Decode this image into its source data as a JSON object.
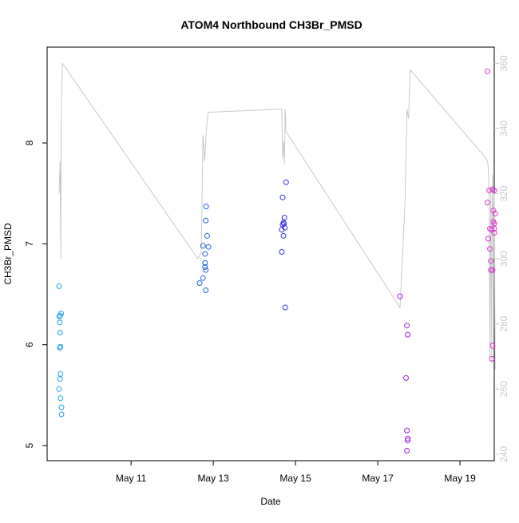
{
  "chart_data": {
    "type": "scatter",
    "title": "ATOM4 Northbound CH3Br_PMSD",
    "xlabel": "Date",
    "ylabel": "CH3Br_PMSD",
    "xlim": [
      "2016-05-08T23:00",
      "2016-05-19T20:00"
    ],
    "ylim": [
      4.85,
      8.95
    ],
    "xticks": [
      {
        "value": "2016-05-11",
        "label": "May 11"
      },
      {
        "value": "2016-05-13",
        "label": "May 13"
      },
      {
        "value": "2016-05-15",
        "label": "May 15"
      },
      {
        "value": "2016-05-17",
        "label": "May 17"
      },
      {
        "value": "2016-05-19",
        "label": "May 19"
      }
    ],
    "yticks": [
      5,
      6,
      7,
      8
    ],
    "y2lim": [
      238,
      365
    ],
    "y2ticks": [
      240,
      260,
      280,
      300,
      320,
      340,
      360
    ],
    "grid": false,
    "colors": {
      "axis": "#000000",
      "secondary_axis": "#c8c8c8",
      "line": "#c8c8c8"
    },
    "series": [
      {
        "color": "#1ea0e8",
        "points": [
          [
            "2016-05-09T06:00",
            6.58
          ],
          [
            "2016-05-09T06:12",
            6.28
          ],
          [
            "2016-05-09T06:36",
            6.29
          ],
          [
            "2016-05-09T06:24",
            6.22
          ],
          [
            "2016-05-09T07:12",
            6.31
          ],
          [
            "2016-05-09T06:36",
            6.12
          ],
          [
            "2016-05-09T06:24",
            5.97
          ],
          [
            "2016-05-09T06:48",
            5.98
          ],
          [
            "2016-05-09T06:48",
            5.71
          ],
          [
            "2016-05-09T06:36",
            5.66
          ],
          [
            "2016-05-09T06:00",
            5.56
          ],
          [
            "2016-05-09T06:48",
            5.47
          ],
          [
            "2016-05-09T07:24",
            5.38
          ],
          [
            "2016-05-09T07:24",
            5.31
          ]
        ]
      },
      {
        "color": "#2060e8",
        "points": [
          [
            "2016-05-12T16:00",
            6.61
          ],
          [
            "2016-05-12T18:00",
            6.66
          ],
          [
            "2016-05-12T18:00",
            6.98
          ],
          [
            "2016-05-12T19:12",
            6.9
          ],
          [
            "2016-05-12T19:12",
            6.81
          ],
          [
            "2016-05-12T19:12",
            6.77
          ],
          [
            "2016-05-12T19:36",
            6.74
          ],
          [
            "2016-05-12T19:36",
            6.54
          ],
          [
            "2016-05-12T19:36",
            7.23
          ],
          [
            "2016-05-12T19:48",
            7.37
          ],
          [
            "2016-05-12T20:24",
            7.08
          ],
          [
            "2016-05-12T21:12",
            6.97
          ]
        ]
      },
      {
        "color": "#3030e8",
        "points": [
          [
            "2016-05-14T16:30",
            7.46
          ],
          [
            "2016-05-14T16:00",
            7.14
          ],
          [
            "2016-05-14T16:30",
            7.19
          ],
          [
            "2016-05-14T17:00",
            7.21
          ],
          [
            "2016-05-14T17:15",
            7.2
          ],
          [
            "2016-05-14T17:30",
            7.26
          ],
          [
            "2016-05-14T17:45",
            7.16
          ],
          [
            "2016-05-14T17:00",
            7.08
          ],
          [
            "2016-05-14T16:00",
            6.92
          ],
          [
            "2016-05-14T18:30",
            7.61
          ],
          [
            "2016-05-14T18:00",
            6.37
          ]
        ]
      },
      {
        "color": "#a020e0",
        "points": [
          [
            "2016-05-17T13:00",
            6.48
          ],
          [
            "2016-05-17T17:00",
            6.19
          ],
          [
            "2016-05-17T17:30",
            6.1
          ],
          [
            "2016-05-17T16:30",
            5.67
          ],
          [
            "2016-05-17T17:00",
            5.15
          ],
          [
            "2016-05-17T17:30",
            5.07
          ],
          [
            "2016-05-17T17:30",
            5.05
          ],
          [
            "2016-05-17T17:00",
            4.95
          ]
        ]
      },
      {
        "color": "#e030d0",
        "points": [
          [
            "2016-05-19T16:00",
            8.71
          ],
          [
            "2016-05-19T16:00",
            7.41
          ],
          [
            "2016-05-19T17:00",
            7.53
          ],
          [
            "2016-05-19T19:00",
            7.54
          ],
          [
            "2016-05-19T20:00",
            7.53
          ],
          [
            "2016-05-19T19:30",
            7.33
          ],
          [
            "2016-05-19T20:30",
            7.3
          ],
          [
            "2016-05-19T19:30",
            7.22
          ],
          [
            "2016-05-19T20:00",
            7.2
          ],
          [
            "2016-05-19T17:30",
            7.15
          ],
          [
            "2016-05-19T18:30",
            7.14
          ],
          [
            "2016-05-19T20:00",
            7.15
          ],
          [
            "2016-05-19T20:00",
            7.11
          ],
          [
            "2016-05-19T16:30",
            7.05
          ],
          [
            "2016-05-19T17:30",
            6.95
          ],
          [
            "2016-05-19T18:00",
            6.83
          ],
          [
            "2016-05-19T18:00",
            6.74
          ],
          [
            "2016-05-19T19:00",
            6.74
          ],
          [
            "2016-05-19T19:00",
            5.99
          ],
          [
            "2016-05-19T18:30",
            5.86
          ]
        ]
      }
    ],
    "line_secondary": {
      "color": "#c8c8c8",
      "points": [
        [
          "2016-05-09T06:00",
          320
        ],
        [
          "2016-05-09T06:36",
          330
        ],
        [
          "2016-05-09T07:00",
          300
        ],
        [
          "2016-05-09T07:12",
          340
        ],
        [
          "2016-05-09T07:36",
          355
        ],
        [
          "2016-05-09T08:00",
          360
        ],
        [
          "2016-05-12T15:00",
          300
        ],
        [
          "2016-05-12T17:00",
          302
        ],
        [
          "2016-05-12T18:00",
          338
        ],
        [
          "2016-05-12T19:00",
          330
        ],
        [
          "2016-05-12T20:00",
          340
        ],
        [
          "2016-05-12T21:00",
          345
        ],
        [
          "2016-05-14T16:00",
          346
        ],
        [
          "2016-05-14T16:30",
          331
        ],
        [
          "2016-05-14T17:00",
          336
        ],
        [
          "2016-05-14T17:30",
          329
        ],
        [
          "2016-05-14T18:00",
          346
        ],
        [
          "2016-05-14T18:30",
          339
        ],
        [
          "2016-05-17T13:00",
          285
        ],
        [
          "2016-05-17T16:00",
          318
        ],
        [
          "2016-05-17T17:00",
          346
        ],
        [
          "2016-05-17T18:00",
          343
        ],
        [
          "2016-05-17T19:00",
          358
        ],
        [
          "2016-05-19T15:00",
          331
        ],
        [
          "2016-05-19T16:00",
          330
        ],
        [
          "2016-05-19T16:30",
          328
        ],
        [
          "2016-05-19T17:00",
          318
        ],
        [
          "2016-05-19T17:30",
          270
        ],
        [
          "2016-05-19T18:00",
          322
        ],
        [
          "2016-05-19T18:30",
          268
        ],
        [
          "2016-05-19T19:00",
          326
        ],
        [
          "2016-05-19T19:30",
          310
        ],
        [
          "2016-05-19T20:00",
          320
        ],
        [
          "2016-05-19T20:30",
          266
        ]
      ]
    }
  }
}
